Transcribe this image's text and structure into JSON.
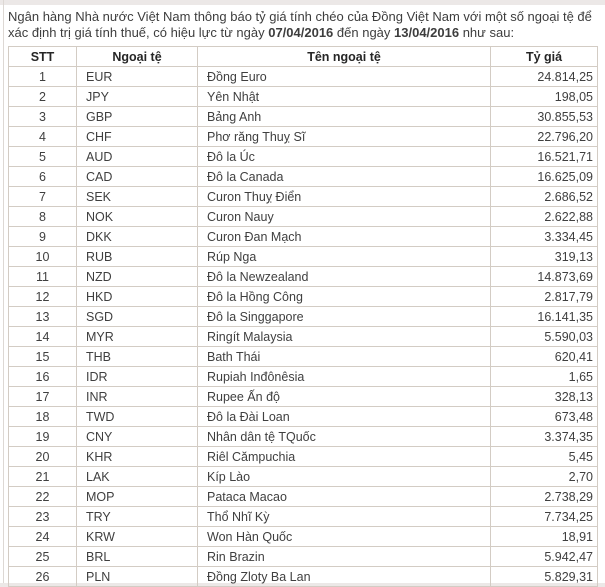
{
  "intro": {
    "text_before": "Ngân hàng Nhà nước Việt Nam thông báo tỷ giá tính chéo của Đồng Việt Nam với một số ngoại tệ để xác định trị giá tính thuế, có hiệu lực từ ngày ",
    "date_from": "07/04/2016",
    "text_between": " đến ngày ",
    "date_to": "13/04/2016",
    "text_after": " như sau:"
  },
  "table": {
    "headers": [
      "STT",
      "Ngoại tệ",
      "Tên ngoại tệ",
      "Tỷ giá"
    ],
    "rows": [
      [
        "1",
        "EUR",
        "Đồng Euro",
        "24.814,25"
      ],
      [
        "2",
        "JPY",
        "Yên Nhật",
        "198,05"
      ],
      [
        "3",
        "GBP",
        "Bảng Anh",
        "30.855,53"
      ],
      [
        "4",
        "CHF",
        "Phơ răng Thuỵ Sĩ",
        "22.796,20"
      ],
      [
        "5",
        "AUD",
        "Đô la Úc",
        "16.521,71"
      ],
      [
        "6",
        "CAD",
        "Đô la Canada",
        "16.625,09"
      ],
      [
        "7",
        "SEK",
        "Curon Thuỵ Điển",
        "2.686,52"
      ],
      [
        "8",
        "NOK",
        "Curon Nauy",
        "2.622,88"
      ],
      [
        "9",
        "DKK",
        "Curon Đan Mạch",
        "3.334,45"
      ],
      [
        "10",
        "RUB",
        "Rúp Nga",
        "319,13"
      ],
      [
        "11",
        "NZD",
        "Đô la Newzealand",
        "14.873,69"
      ],
      [
        "12",
        "HKD",
        "Đô la Hồng Công",
        "2.817,79"
      ],
      [
        "13",
        "SGD",
        "Đô la Singgapore",
        "16.141,35"
      ],
      [
        "14",
        "MYR",
        "Ringít Malaysia",
        "5.590,03"
      ],
      [
        "15",
        "THB",
        "Bath Thái",
        "620,41"
      ],
      [
        "16",
        "IDR",
        "Rupiah Inđônêsia",
        "1,65"
      ],
      [
        "17",
        "INR",
        "Rupee Ấn độ",
        "328,13"
      ],
      [
        "18",
        "TWD",
        "Đô la Đài Loan",
        "673,48"
      ],
      [
        "19",
        "CNY",
        "Nhân dân tệ TQuốc",
        "3.374,35"
      ],
      [
        "20",
        "KHR",
        "Riêl Cămpuchia",
        "5,45"
      ],
      [
        "21",
        "LAK",
        "Kíp Lào",
        "2,70"
      ],
      [
        "22",
        "MOP",
        "Pataca Macao",
        "2.738,29"
      ],
      [
        "23",
        "TRY",
        "Thổ Nhĩ Kỳ",
        "7.734,25"
      ],
      [
        "24",
        "KRW",
        "Won Hàn Quốc",
        "18,91"
      ],
      [
        "25",
        "BRL",
        "Rin Brazin",
        "5.942,47"
      ],
      [
        "26",
        "PLN",
        "Đồng Zloty Ba Lan",
        "5.829,31"
      ]
    ]
  },
  "colors": {
    "border": "#d3ccc4",
    "band": "#ece8e7",
    "text": "#3f3f3f",
    "header_text": "#262626"
  }
}
